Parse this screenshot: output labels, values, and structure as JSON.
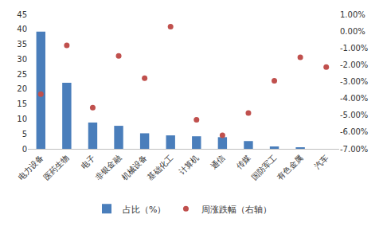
{
  "chart_data": {
    "type": "bar",
    "categories": [
      "电力设备",
      "医药生物",
      "电子",
      "非银金融",
      "机械设备",
      "基础化工",
      "计算机",
      "通信",
      "传媒",
      "国防军工",
      "有色金属",
      "汽车"
    ],
    "series": [
      {
        "name": "占比（%）",
        "type": "bar",
        "color": "#4a7ebb",
        "values": [
          39.2,
          22.1,
          8.8,
          7.7,
          5.2,
          4.5,
          4.2,
          3.9,
          2.6,
          0.8,
          0.3,
          0
        ]
      },
      {
        "name": "周涨跌幅（右轴）",
        "type": "scatter",
        "axis": "y2",
        "color": "#c0504d",
        "marker": "circle",
        "values": [
          -3.75,
          -0.85,
          -4.55,
          -1.47,
          -2.8,
          0.27,
          -5.27,
          -6.2,
          -4.87,
          -2.95,
          -1.56,
          -2.14
        ]
      }
    ],
    "ylim": [
      0,
      45
    ],
    "yticks": [
      0,
      5,
      10,
      15,
      20,
      25,
      30,
      35,
      40,
      45
    ],
    "y2lim": [
      -7,
      1
    ],
    "y2ticks": [
      {
        "value": -7,
        "label": "-7.00%"
      },
      {
        "value": -6,
        "label": "-6.00%"
      },
      {
        "value": -5,
        "label": "-5.00%"
      },
      {
        "value": -4,
        "label": "-4.00%"
      },
      {
        "value": -3,
        "label": "-3.00%"
      },
      {
        "value": -2,
        "label": "-2.00%"
      },
      {
        "value": -1,
        "label": "-1.00%"
      },
      {
        "value": 0,
        "label": "0.00%"
      },
      {
        "value": 1,
        "label": "1.00%"
      }
    ],
    "grid": false,
    "legend": "bottom"
  }
}
